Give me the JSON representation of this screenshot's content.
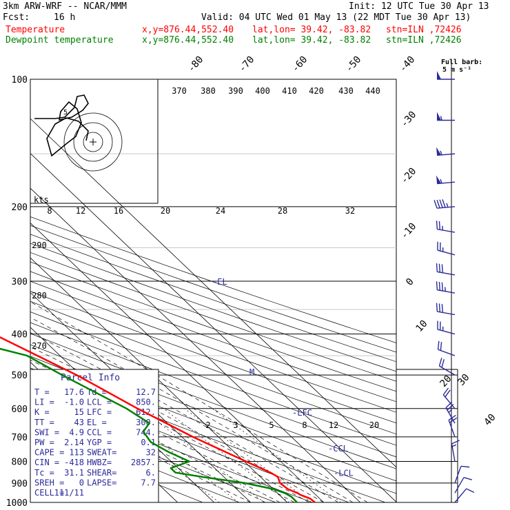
{
  "header": {
    "model": "3km ARW-WRF -- NCAR/MMM",
    "init": "Init: 12 UTC Tue 30 Apr 13",
    "fcst_label": "Fcst:",
    "fcst_value": "16 h",
    "valid": "Valid: 04 UTC Wed 01 May 13 (22 MDT Tue 30 Apr 13)",
    "temp_line": {
      "name": "Temperature",
      "xy": "x,y=876.44,552.40",
      "latlon": "lat,lon= 39.42, -83.82",
      "stn": "stn=ILN ,72426"
    },
    "dew_line": {
      "name": "Dewpoint temperature",
      "xy": "x,y=876.44,552.40",
      "latlon": "lat,lon= 39.42, -83.82",
      "stn": "stn=ILN ,72426"
    }
  },
  "barb_legend": {
    "line1": "Full barb:",
    "line2": "5 m s⁻¹"
  },
  "hodo_label": "kts",
  "colors": {
    "temperature": "#ff0000",
    "dewpoint": "#008000",
    "wind": "#2a2a9a",
    "ink": "#000000"
  },
  "chart_data": {
    "type": "line",
    "pressure_axis": {
      "levels": [
        100,
        200,
        300,
        400,
        500,
        600,
        700,
        800,
        900,
        1000
      ],
      "scale": "log"
    },
    "isotherm_labels": [
      "-80",
      "-70",
      "-60",
      "-50",
      "-40",
      "-30",
      "-20",
      "-10",
      "0",
      "10",
      "20",
      "30",
      "40"
    ],
    "theta_labels": [
      "370",
      "380",
      "390",
      "400",
      "410",
      "420",
      "430",
      "440",
      "290",
      "280",
      "270"
    ],
    "mixing_ratio_labels": [
      "2",
      "3",
      "5",
      "8",
      "12",
      "20"
    ],
    "hodo_speed_labels": [
      "8",
      "12",
      "16",
      "20",
      "24",
      "28",
      "32"
    ],
    "series": [
      {
        "name": "Temperature",
        "points": [
          [
            1000,
            17.6
          ],
          [
            980,
            17.4
          ],
          [
            960,
            15.8
          ],
          [
            950,
            15.5
          ],
          [
            930,
            14.0
          ],
          [
            900,
            13.6
          ],
          [
            870,
            14.8
          ],
          [
            850,
            14.0
          ],
          [
            800,
            10.5
          ],
          [
            700,
            3.0
          ],
          [
            600,
            -4.0
          ],
          [
            500,
            -11.0
          ],
          [
            400,
            -22.0
          ],
          [
            300,
            -34.0
          ],
          [
            250,
            -43.0
          ],
          [
            200,
            -53.0
          ],
          [
            150,
            -61.0
          ],
          [
            120,
            -63.0
          ],
          [
            100,
            -64.0
          ]
        ]
      },
      {
        "name": "Dewpoint temperature",
        "points": [
          [
            1000,
            12.7
          ],
          [
            970,
            12.8
          ],
          [
            950,
            12.0
          ],
          [
            930,
            10.0
          ],
          [
            900,
            4.0
          ],
          [
            870,
            -6.0
          ],
          [
            850,
            -12.0
          ],
          [
            830,
            -12.0
          ],
          [
            800,
            -5.0
          ],
          [
            760,
            -8.0
          ],
          [
            720,
            -10.0
          ],
          [
            680,
            -9.0
          ],
          [
            650,
            -5.0
          ],
          [
            600,
            -7.0
          ],
          [
            500,
            -15.0
          ],
          [
            450,
            -19.0
          ],
          [
            400,
            -36.0
          ],
          [
            350,
            -48.0
          ],
          [
            300,
            -57.0
          ],
          [
            250,
            -60.0
          ],
          [
            200,
            -63.0
          ],
          [
            150,
            -72.0
          ],
          [
            100,
            -79.0
          ]
        ]
      }
    ],
    "level_markers": [
      {
        "label": "-LCL",
        "p": 850
      },
      {
        "label": "-CCL",
        "p": 744
      },
      {
        "label": "-LFC",
        "p": 612
      },
      {
        "label": "-EL",
        "p": 300
      },
      {
        "label": "M",
        "p": 490
      }
    ],
    "wind_barbs": [
      {
        "p": 100,
        "speed": 50,
        "dir": 270
      },
      {
        "p": 125,
        "speed": 55,
        "dir": 270
      },
      {
        "p": 150,
        "speed": 55,
        "dir": 265
      },
      {
        "p": 175,
        "speed": 55,
        "dir": 265
      },
      {
        "p": 200,
        "speed": 45,
        "dir": 265
      },
      {
        "p": 230,
        "speed": 25,
        "dir": 280
      },
      {
        "p": 260,
        "speed": 25,
        "dir": 285
      },
      {
        "p": 290,
        "speed": 30,
        "dir": 280
      },
      {
        "p": 320,
        "speed": 35,
        "dir": 280
      },
      {
        "p": 360,
        "speed": 30,
        "dir": 280
      },
      {
        "p": 400,
        "speed": 25,
        "dir": 285
      },
      {
        "p": 450,
        "speed": 20,
        "dir": 290
      },
      {
        "p": 500,
        "speed": 20,
        "dir": 300
      },
      {
        "p": 600,
        "speed": 20,
        "dir": 320
      },
      {
        "p": 650,
        "speed": 25,
        "dir": 330
      },
      {
        "p": 700,
        "speed": 20,
        "dir": 340
      },
      {
        "p": 800,
        "speed": 15,
        "dir": 350
      },
      {
        "p": 900,
        "speed": 10,
        "dir": 20
      },
      {
        "p": 950,
        "speed": 10,
        "dir": 30
      },
      {
        "p": 1000,
        "speed": 10,
        "dir": 40
      }
    ]
  },
  "parcel_info": {
    "title": "Parcel Info",
    "rows": [
      [
        "T  =",
        "17.6",
        "Td =",
        "12.7"
      ],
      [
        "LI =",
        "-1.0",
        "LCL =",
        "850."
      ],
      [
        "K  =",
        "15",
        "LFC =",
        "612."
      ],
      [
        "TT =",
        "43",
        "EL  =",
        "300."
      ],
      [
        "SWI =",
        "4.9",
        "CCL =",
        "744."
      ],
      [
        "PW =",
        "2.14",
        "YGP =",
        "0.1"
      ],
      [
        "CAPE =",
        "113",
        "SWEAT=",
        "32"
      ],
      [
        "CIN =",
        "-418",
        "HWBZ=",
        "2857."
      ],
      [
        "Tc =",
        "31.1",
        "SHEAR=",
        "6."
      ],
      [
        "SREH =",
        "0",
        "LAPSE=",
        "7.7"
      ],
      [
        "CELL =",
        "111/11",
        "",
        ""
      ]
    ]
  }
}
